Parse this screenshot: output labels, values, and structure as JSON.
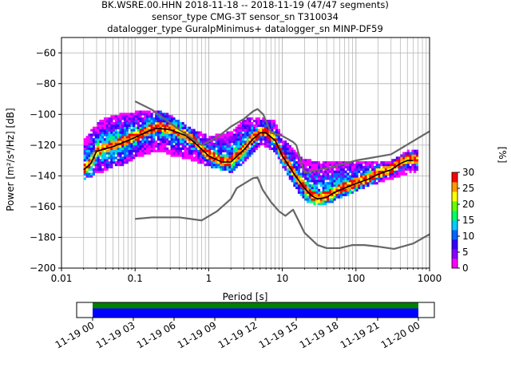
{
  "chart_data": [
    {
      "type": "heatmap",
      "title_lines": [
        "BK.WSRE.00.HHN   2018-11-18 -- 2018-11-19  (47/47 segments)",
        "sensor_type CMG-3T sensor_sn T310034",
        "datalogger_type GuralpMinimus+ datalogger_sn MINP-DF59"
      ],
      "xlabel": "Period [s]",
      "ylabel": "Power [m²/s⁴/Hz] [dB]",
      "x_scale": "log",
      "xlim": [
        0.01,
        1000
      ],
      "ylim": [
        -200,
        -50
      ],
      "x_ticks": [
        {
          "v": 0.01,
          "label": "0.01"
        },
        {
          "v": 0.1,
          "label": "0.1"
        },
        {
          "v": 1,
          "label": "1"
        },
        {
          "v": 10,
          "label": "10"
        },
        {
          "v": 100,
          "label": "100"
        },
        {
          "v": 1000,
          "label": "1000"
        }
      ],
      "y_ticks": [
        {
          "v": -60,
          "label": "−60"
        },
        {
          "v": -80,
          "label": "−80"
        },
        {
          "v": -100,
          "label": "−100"
        },
        {
          "v": -120,
          "label": "−120"
        },
        {
          "v": -140,
          "label": "−140"
        },
        {
          "v": -160,
          "label": "−160"
        },
        {
          "v": -180,
          "label": "−180"
        },
        {
          "v": -200,
          "label": "−200"
        }
      ],
      "grid": true,
      "series": [
        {
          "name": "",
          "role": "median",
          "color": "#000000",
          "points": [
            [
              0.02,
              -136
            ],
            [
              0.025,
              -132
            ],
            [
              0.03,
              -124
            ],
            [
              0.05,
              -121
            ],
            [
              0.08,
              -117
            ],
            [
              0.1,
              -115
            ],
            [
              0.15,
              -111
            ],
            [
              0.2,
              -109
            ],
            [
              0.3,
              -110
            ],
            [
              0.5,
              -114
            ],
            [
              0.7,
              -120
            ],
            [
              1,
              -127
            ],
            [
              1.5,
              -131
            ],
            [
              2,
              -131
            ],
            [
              3,
              -123
            ],
            [
              4,
              -116
            ],
            [
              5,
              -112
            ],
            [
              6,
              -112
            ],
            [
              8,
              -117
            ],
            [
              10,
              -127
            ],
            [
              15,
              -140
            ],
            [
              20,
              -148
            ],
            [
              25,
              -153
            ],
            [
              30,
              -155
            ],
            [
              40,
              -154
            ],
            [
              50,
              -151
            ],
            [
              70,
              -148
            ],
            [
              100,
              -145
            ],
            [
              150,
              -142
            ],
            [
              200,
              -139
            ],
            [
              300,
              -136
            ],
            [
              400,
              -132
            ],
            [
              500,
              -130
            ],
            [
              600,
              -130
            ]
          ]
        },
        {
          "name": "",
          "role": "noise-model-high",
          "color": "#666666",
          "points": [
            [
              0.1,
              -91.5
            ],
            [
              0.17,
              -97
            ],
            [
              0.4,
              -110
            ],
            [
              0.8,
              -120
            ],
            [
              1.3,
              -115
            ],
            [
              2,
              -108
            ],
            [
              3,
              -103
            ],
            [
              4,
              -98
            ],
            [
              4.6,
              -96.5
            ],
            [
              5.5,
              -100
            ],
            [
              6.2,
              -106
            ],
            [
              7,
              -112
            ],
            [
              10,
              -114
            ],
            [
              14,
              -118
            ],
            [
              15.5,
              -120
            ],
            [
              17,
              -127
            ],
            [
              20,
              -138
            ],
            [
              50,
              -134
            ],
            [
              100,
              -130
            ],
            [
              300,
              -126
            ],
            [
              1000,
              -111
            ]
          ]
        },
        {
          "name": "",
          "role": "noise-model-low",
          "color": "#666666",
          "points": [
            [
              0.1,
              -168
            ],
            [
              0.17,
              -167
            ],
            [
              0.4,
              -167
            ],
            [
              0.8,
              -169
            ],
            [
              1.3,
              -163
            ],
            [
              2,
              -155
            ],
            [
              2.4,
              -148
            ],
            [
              4,
              -141.5
            ],
            [
              4.6,
              -141
            ],
            [
              5.4,
              -149
            ],
            [
              7,
              -157
            ],
            [
              9,
              -163
            ],
            [
              11,
              -166
            ],
            [
              14,
              -162
            ],
            [
              20,
              -177
            ],
            [
              30,
              -185
            ],
            [
              40,
              -187
            ],
            [
              60,
              -187
            ],
            [
              90,
              -185
            ],
            [
              130,
              -185
            ],
            [
              200,
              -186
            ],
            [
              330,
              -187.5
            ],
            [
              600,
              -184
            ],
            [
              1000,
              -178
            ]
          ]
        }
      ],
      "density": {
        "color_scale_label": "[%]",
        "vmin": 0,
        "vmax": 30,
        "colorbar_ticks": [
          "0",
          "5",
          "10",
          "15",
          "20",
          "25",
          "30"
        ],
        "colormap": [
          "#ff00ff",
          "#8800ff",
          "#3300ff",
          "#0066ff",
          "#00ccff",
          "#00ff66",
          "#66ff00",
          "#ffff00",
          "#ff9900",
          "#ff0000"
        ],
        "x_extent": [
          0.02,
          700
        ],
        "upper_envelope": [
          [
            0.02,
            -118
          ],
          [
            0.03,
            -106
          ],
          [
            0.05,
            -101
          ],
          [
            0.1,
            -99
          ],
          [
            0.2,
            -98
          ],
          [
            0.3,
            -101
          ],
          [
            0.5,
            -108
          ],
          [
            1,
            -115
          ],
          [
            2,
            -112
          ],
          [
            3,
            -104
          ],
          [
            4,
            -102
          ],
          [
            5,
            -103
          ],
          [
            8,
            -105
          ],
          [
            10,
            -115
          ],
          [
            20,
            -130
          ],
          [
            50,
            -132
          ],
          [
            100,
            -131
          ],
          [
            300,
            -131
          ],
          [
            500,
            -124
          ],
          [
            700,
            -123
          ]
        ],
        "lower_envelope": [
          [
            0.02,
            -142
          ],
          [
            0.03,
            -138
          ],
          [
            0.05,
            -134
          ],
          [
            0.08,
            -131
          ],
          [
            0.1,
            -128
          ],
          [
            0.2,
            -123
          ],
          [
            0.3,
            -126
          ],
          [
            0.5,
            -128
          ],
          [
            1,
            -133
          ],
          [
            2,
            -137
          ],
          [
            3,
            -131
          ],
          [
            5,
            -119
          ],
          [
            8,
            -124
          ],
          [
            10,
            -133
          ],
          [
            15,
            -147
          ],
          [
            20,
            -155
          ],
          [
            30,
            -159
          ],
          [
            50,
            -156
          ],
          [
            100,
            -149
          ],
          [
            200,
            -144
          ],
          [
            500,
            -138
          ],
          [
            700,
            -136
          ]
        ],
        "hot_band_dB": 3
      }
    },
    {
      "type": "timeline",
      "tick_labels": [
        "11-19 00",
        "11-19 03",
        "11-19 06",
        "11-19 09",
        "11-19 12",
        "11-19 15",
        "11-19 18",
        "11-19 21",
        "11-20 00"
      ],
      "coverage": [
        {
          "start": 0,
          "end": 1,
          "color": "#0000ff"
        }
      ],
      "gaps": [],
      "status_stripe": [
        {
          "start": 0,
          "end": 1,
          "color": "#008000"
        }
      ]
    }
  ]
}
